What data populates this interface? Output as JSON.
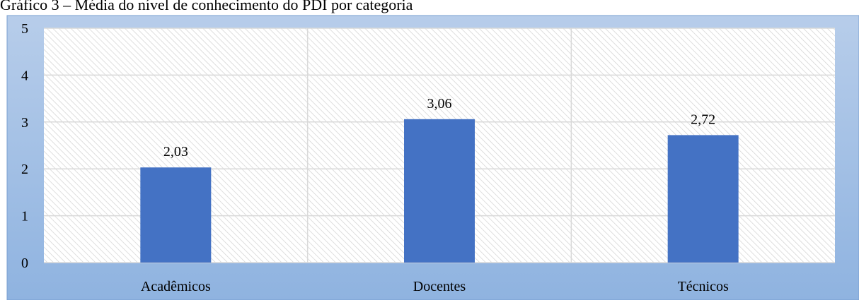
{
  "chart_data": {
    "type": "bar",
    "title": "Gráfico 3 – Média do nível de conhecimento do PDI por categoria",
    "categories": [
      "Acadêmicos",
      "Docentes",
      "Técnicos"
    ],
    "values": [
      2.03,
      3.06,
      2.72
    ],
    "value_labels": [
      "2,03",
      "3,06",
      "2,72"
    ],
    "color": "#4472c4",
    "ylim": [
      0,
      5
    ],
    "yticks": [
      0,
      1,
      2,
      3,
      4,
      5
    ],
    "grid": true
  }
}
